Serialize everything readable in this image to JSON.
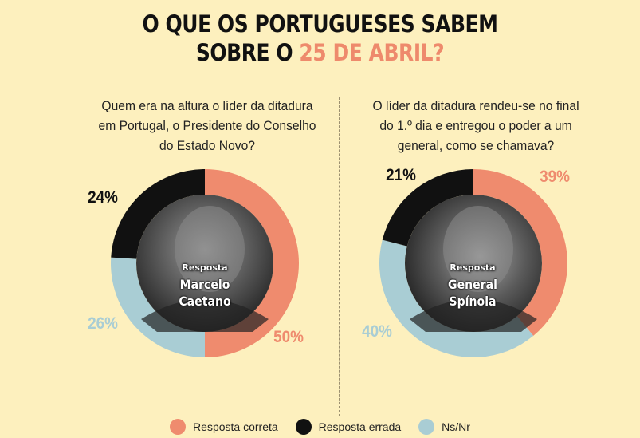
{
  "title": {
    "line1": "O QUE OS PORTUGUESES SABEM",
    "line2_prefix": "SOBRE O ",
    "line2_accent": "25 DE ABRIL?"
  },
  "colors": {
    "background": "#fdf0be",
    "correct": "#ef8b6e",
    "wrong": "#111111",
    "nsnr": "#a9cdd4",
    "accent_title": "#ee8a6c"
  },
  "legend": [
    {
      "label": "Resposta correta",
      "color": "#ef8b6e"
    },
    {
      "label": "Resposta errada",
      "color": "#111111"
    },
    {
      "label": "Ns/Nr",
      "color": "#a9cdd4"
    }
  ],
  "chart_data": [
    {
      "type": "pie",
      "question": "Quem era na altura o líder da ditadura em Portugal, o Presidente do Conselho do Estado Novo?",
      "answer_label": "Resposta",
      "answer": [
        "Marcelo",
        "Caetano"
      ],
      "photo": "portrait-marcelo-caetano",
      "slices": [
        {
          "category": "Resposta correta",
          "value": 50,
          "label": "50%"
        },
        {
          "category": "Ns/Nr",
          "value": 26,
          "label": "26%"
        },
        {
          "category": "Resposta errada",
          "value": 24,
          "label": "24%"
        }
      ]
    },
    {
      "type": "pie",
      "question": "O líder da ditadura rendeu-se no final do 1.º dia e entregou o poder a um general, como se chamava?",
      "answer_label": "Resposta",
      "answer": [
        "General",
        "Spínola"
      ],
      "photo": "portrait-general-spinola",
      "slices": [
        {
          "category": "Resposta correta",
          "value": 39,
          "label": "39%"
        },
        {
          "category": "Ns/Nr",
          "value": 40,
          "label": "40%"
        },
        {
          "category": "Resposta errada",
          "value": 21,
          "label": "21%"
        }
      ]
    }
  ]
}
